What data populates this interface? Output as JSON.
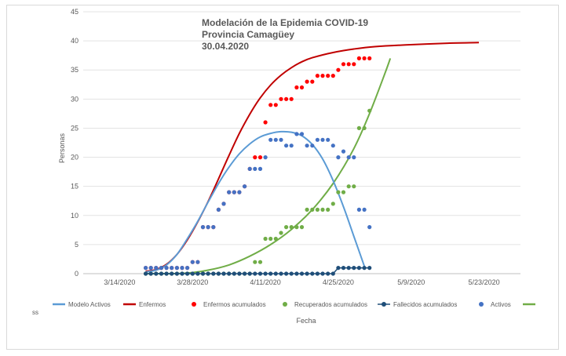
{
  "chart_data": {
    "type": "scatter",
    "title_lines": [
      "Modelación de la Epidemia COVID-19",
      "Provincia Camagüey",
      "30.04.2020"
    ],
    "xlabel": "Fecha",
    "ylabel": "Personas",
    "xlim": [
      "2020-03-07",
      "2020-05-30"
    ],
    "ylim": [
      0,
      45
    ],
    "y_ticks": [
      0,
      5,
      10,
      15,
      20,
      25,
      30,
      35,
      40,
      45
    ],
    "x_ticks": [
      "3/14/2020",
      "3/28/2020",
      "4/11/2020",
      "4/25/2020",
      "5/9/2020",
      "5/23/2020"
    ],
    "x_tick_dates": [
      "2020-03-14",
      "2020-03-28",
      "2020-04-11",
      "2020-04-25",
      "2020-05-09",
      "2020-05-23"
    ],
    "grid": "horizontal",
    "legend_position": "bottom",
    "series": [
      {
        "name": "Modelo Activos",
        "kind": "line",
        "color": "#5b9bd5",
        "points": [
          [
            "2020-03-19",
            0.3
          ],
          [
            "2020-03-21",
            0.6
          ],
          [
            "2020-03-23",
            1.5
          ],
          [
            "2020-03-25",
            3.3
          ],
          [
            "2020-03-27",
            6.0
          ],
          [
            "2020-03-29",
            9.0
          ],
          [
            "2020-03-31",
            12.3
          ],
          [
            "2020-04-02",
            15.5
          ],
          [
            "2020-04-04",
            18.3
          ],
          [
            "2020-04-06",
            20.6
          ],
          [
            "2020-04-08",
            22.3
          ],
          [
            "2020-04-10",
            23.5
          ],
          [
            "2020-04-12",
            24.1
          ],
          [
            "2020-04-14",
            24.4
          ],
          [
            "2020-04-16",
            24.3
          ],
          [
            "2020-04-18",
            23.7
          ],
          [
            "2020-04-20",
            22.2
          ],
          [
            "2020-04-22",
            19.7
          ],
          [
            "2020-04-24",
            16.0
          ],
          [
            "2020-04-26",
            11.5
          ],
          [
            "2020-04-28",
            6.4
          ],
          [
            "2020-04-30",
            1.3
          ]
        ]
      },
      {
        "name": "Enfermos",
        "kind": "line",
        "color": "#c00000",
        "points": [
          [
            "2020-03-19",
            0.4
          ],
          [
            "2020-03-21",
            0.7
          ],
          [
            "2020-03-23",
            1.6
          ],
          [
            "2020-03-25",
            3.3
          ],
          [
            "2020-03-27",
            5.8
          ],
          [
            "2020-03-29",
            8.9
          ],
          [
            "2020-03-31",
            12.4
          ],
          [
            "2020-04-02",
            16.3
          ],
          [
            "2020-04-04",
            20.3
          ],
          [
            "2020-04-06",
            24.1
          ],
          [
            "2020-04-08",
            27.4
          ],
          [
            "2020-04-10",
            30.2
          ],
          [
            "2020-04-12",
            32.4
          ],
          [
            "2020-04-14",
            34.1
          ],
          [
            "2020-04-16",
            35.4
          ],
          [
            "2020-04-18",
            36.4
          ],
          [
            "2020-04-20",
            37.1
          ],
          [
            "2020-04-24",
            38.0
          ],
          [
            "2020-04-28",
            38.6
          ],
          [
            "2020-05-02",
            39.0
          ],
          [
            "2020-05-08",
            39.3
          ],
          [
            "2020-05-16",
            39.6
          ],
          [
            "2020-05-22",
            39.7
          ]
        ]
      },
      {
        "name": "Enfermos acumulados",
        "kind": "scatter",
        "color": "#ff0000",
        "points": [
          [
            "2020-03-19",
            1
          ],
          [
            "2020-03-20",
            1
          ],
          [
            "2020-03-21",
            1
          ],
          [
            "2020-03-22",
            1
          ],
          [
            "2020-03-23",
            1
          ],
          [
            "2020-03-24",
            1
          ],
          [
            "2020-03-25",
            1
          ],
          [
            "2020-03-26",
            1
          ],
          [
            "2020-03-27",
            1
          ],
          [
            "2020-03-28",
            2
          ],
          [
            "2020-03-29",
            2
          ],
          [
            "2020-03-30",
            8
          ],
          [
            "2020-03-31",
            8
          ],
          [
            "2020-04-01",
            8
          ],
          [
            "2020-04-02",
            11
          ],
          [
            "2020-04-03",
            12
          ],
          [
            "2020-04-04",
            14
          ],
          [
            "2020-04-05",
            14
          ],
          [
            "2020-04-06",
            14
          ],
          [
            "2020-04-07",
            15
          ],
          [
            "2020-04-08",
            18
          ],
          [
            "2020-04-09",
            20
          ],
          [
            "2020-04-10",
            20
          ],
          [
            "2020-04-11",
            26
          ],
          [
            "2020-04-12",
            29
          ],
          [
            "2020-04-13",
            29
          ],
          [
            "2020-04-14",
            30
          ],
          [
            "2020-04-15",
            30
          ],
          [
            "2020-04-16",
            30
          ],
          [
            "2020-04-17",
            32
          ],
          [
            "2020-04-18",
            32
          ],
          [
            "2020-04-19",
            33
          ],
          [
            "2020-04-20",
            33
          ],
          [
            "2020-04-21",
            34
          ],
          [
            "2020-04-22",
            34
          ],
          [
            "2020-04-23",
            34
          ],
          [
            "2020-04-24",
            34
          ],
          [
            "2020-04-25",
            35
          ],
          [
            "2020-04-26",
            36
          ],
          [
            "2020-04-27",
            36
          ],
          [
            "2020-04-28",
            36
          ],
          [
            "2020-04-29",
            37
          ],
          [
            "2020-04-30",
            37
          ],
          [
            "2020-05-01",
            37
          ]
        ]
      },
      {
        "name": "Recuperados acumulados",
        "kind": "scatter",
        "color": "#70ad47",
        "points": [
          [
            "2020-03-19",
            0
          ],
          [
            "2020-03-20",
            0
          ],
          [
            "2020-03-21",
            0
          ],
          [
            "2020-03-22",
            0
          ],
          [
            "2020-03-23",
            0
          ],
          [
            "2020-03-24",
            0
          ],
          [
            "2020-03-25",
            0
          ],
          [
            "2020-03-26",
            0
          ],
          [
            "2020-03-27",
            0
          ],
          [
            "2020-03-28",
            0
          ],
          [
            "2020-03-29",
            0
          ],
          [
            "2020-03-30",
            0
          ],
          [
            "2020-03-31",
            0
          ],
          [
            "2020-04-01",
            0
          ],
          [
            "2020-04-02",
            0
          ],
          [
            "2020-04-03",
            0
          ],
          [
            "2020-04-04",
            0
          ],
          [
            "2020-04-05",
            0
          ],
          [
            "2020-04-06",
            0
          ],
          [
            "2020-04-07",
            0
          ],
          [
            "2020-04-08",
            0
          ],
          [
            "2020-04-09",
            2
          ],
          [
            "2020-04-10",
            2
          ],
          [
            "2020-04-11",
            6
          ],
          [
            "2020-04-12",
            6
          ],
          [
            "2020-04-13",
            6
          ],
          [
            "2020-04-14",
            7
          ],
          [
            "2020-04-15",
            8
          ],
          [
            "2020-04-16",
            8
          ],
          [
            "2020-04-17",
            8
          ],
          [
            "2020-04-18",
            8
          ],
          [
            "2020-04-19",
            11
          ],
          [
            "2020-04-20",
            11
          ],
          [
            "2020-04-21",
            11
          ],
          [
            "2020-04-22",
            11
          ],
          [
            "2020-04-23",
            11
          ],
          [
            "2020-04-24",
            12
          ],
          [
            "2020-04-25",
            14
          ],
          [
            "2020-04-26",
            14
          ],
          [
            "2020-04-27",
            15
          ],
          [
            "2020-04-28",
            15
          ],
          [
            "2020-04-29",
            25
          ],
          [
            "2020-04-30",
            25
          ],
          [
            "2020-05-01",
            28
          ]
        ]
      },
      {
        "name": "Fallecidos acumulados",
        "kind": "scatter-line",
        "color": "#1f4e79",
        "points": [
          [
            "2020-03-19",
            0
          ],
          [
            "2020-03-20",
            0
          ],
          [
            "2020-03-21",
            0
          ],
          [
            "2020-03-22",
            0
          ],
          [
            "2020-03-23",
            0
          ],
          [
            "2020-03-24",
            0
          ],
          [
            "2020-03-25",
            0
          ],
          [
            "2020-03-26",
            0
          ],
          [
            "2020-03-27",
            0
          ],
          [
            "2020-03-28",
            0
          ],
          [
            "2020-03-29",
            0
          ],
          [
            "2020-03-30",
            0
          ],
          [
            "2020-03-31",
            0
          ],
          [
            "2020-04-01",
            0
          ],
          [
            "2020-04-02",
            0
          ],
          [
            "2020-04-03",
            0
          ],
          [
            "2020-04-04",
            0
          ],
          [
            "2020-04-05",
            0
          ],
          [
            "2020-04-06",
            0
          ],
          [
            "2020-04-07",
            0
          ],
          [
            "2020-04-08",
            0
          ],
          [
            "2020-04-09",
            0
          ],
          [
            "2020-04-10",
            0
          ],
          [
            "2020-04-11",
            0
          ],
          [
            "2020-04-12",
            0
          ],
          [
            "2020-04-13",
            0
          ],
          [
            "2020-04-14",
            0
          ],
          [
            "2020-04-15",
            0
          ],
          [
            "2020-04-16",
            0
          ],
          [
            "2020-04-17",
            0
          ],
          [
            "2020-04-18",
            0
          ],
          [
            "2020-04-19",
            0
          ],
          [
            "2020-04-20",
            0
          ],
          [
            "2020-04-21",
            0
          ],
          [
            "2020-04-22",
            0
          ],
          [
            "2020-04-23",
            0
          ],
          [
            "2020-04-24",
            0
          ],
          [
            "2020-04-25",
            1
          ],
          [
            "2020-04-26",
            1
          ],
          [
            "2020-04-27",
            1
          ],
          [
            "2020-04-28",
            1
          ],
          [
            "2020-04-29",
            1
          ],
          [
            "2020-04-30",
            1
          ],
          [
            "2020-05-01",
            1
          ]
        ]
      },
      {
        "name": "Activos",
        "kind": "scatter",
        "color": "#4472c4",
        "points": [
          [
            "2020-03-19",
            1
          ],
          [
            "2020-03-20",
            1
          ],
          [
            "2020-03-21",
            1
          ],
          [
            "2020-03-22",
            1
          ],
          [
            "2020-03-23",
            1
          ],
          [
            "2020-03-24",
            1
          ],
          [
            "2020-03-25",
            1
          ],
          [
            "2020-03-26",
            1
          ],
          [
            "2020-03-27",
            1
          ],
          [
            "2020-03-28",
            2
          ],
          [
            "2020-03-29",
            2
          ],
          [
            "2020-03-30",
            8
          ],
          [
            "2020-03-31",
            8
          ],
          [
            "2020-04-01",
            8
          ],
          [
            "2020-04-02",
            11
          ],
          [
            "2020-04-03",
            12
          ],
          [
            "2020-04-04",
            14
          ],
          [
            "2020-04-05",
            14
          ],
          [
            "2020-04-06",
            14
          ],
          [
            "2020-04-07",
            15
          ],
          [
            "2020-04-08",
            18
          ],
          [
            "2020-04-09",
            18
          ],
          [
            "2020-04-10",
            18
          ],
          [
            "2020-04-11",
            20
          ],
          [
            "2020-04-12",
            23
          ],
          [
            "2020-04-13",
            23
          ],
          [
            "2020-04-14",
            23
          ],
          [
            "2020-04-15",
            22
          ],
          [
            "2020-04-16",
            22
          ],
          [
            "2020-04-17",
            24
          ],
          [
            "2020-04-18",
            24
          ],
          [
            "2020-04-19",
            22
          ],
          [
            "2020-04-20",
            22
          ],
          [
            "2020-04-21",
            23
          ],
          [
            "2020-04-22",
            23
          ],
          [
            "2020-04-23",
            23
          ],
          [
            "2020-04-24",
            22
          ],
          [
            "2020-04-25",
            20
          ],
          [
            "2020-04-26",
            21
          ],
          [
            "2020-04-27",
            20
          ],
          [
            "2020-04-28",
            20
          ],
          [
            "2020-04-29",
            11
          ],
          [
            "2020-04-30",
            11
          ],
          [
            "2020-05-01",
            8
          ]
        ]
      },
      {
        "name": "",
        "kind": "line",
        "color": "#70ad47",
        "points": [
          [
            "2020-03-19",
            0
          ],
          [
            "2020-03-23",
            0
          ],
          [
            "2020-03-27",
            0.1
          ],
          [
            "2020-03-31",
            0.6
          ],
          [
            "2020-04-04",
            1.5
          ],
          [
            "2020-04-08",
            3.0
          ],
          [
            "2020-04-12",
            5.0
          ],
          [
            "2020-04-16",
            7.6
          ],
          [
            "2020-04-20",
            11.0
          ],
          [
            "2020-04-24",
            15.5
          ],
          [
            "2020-04-28",
            21.5
          ],
          [
            "2020-05-01",
            27.5
          ],
          [
            "2020-05-04",
            34.5
          ],
          [
            "2020-05-05",
            37.0
          ]
        ]
      }
    ],
    "legend_extra_label": "ss"
  }
}
